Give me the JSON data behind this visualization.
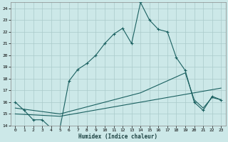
{
  "xlabel": "Humidex (Indice chaleur)",
  "bg_color": "#cce8e8",
  "grid_color": "#aacaca",
  "line_color": "#1a6060",
  "line1": {
    "x": [
      0,
      1,
      2,
      3,
      4,
      5,
      6,
      7,
      8,
      9,
      10,
      11,
      12,
      13,
      14,
      15,
      16,
      17,
      18,
      19,
      20,
      21,
      22,
      23
    ],
    "y": [
      16.0,
      15.3,
      14.5,
      14.5,
      13.8,
      13.8,
      17.8,
      18.8,
      19.3,
      20.0,
      21.0,
      21.8,
      22.3,
      21.0,
      24.5,
      23.0,
      22.2,
      22.0,
      19.8,
      18.7,
      16.0,
      15.3,
      16.5,
      16.2
    ]
  },
  "line2": {
    "x": [
      0,
      5,
      23
    ],
    "y": [
      15.0,
      14.8,
      17.2
    ]
  },
  "line3": {
    "x": [
      0,
      5,
      14,
      19,
      20,
      21,
      22,
      23
    ],
    "y": [
      15.5,
      15.0,
      16.8,
      18.5,
      16.2,
      15.5,
      16.4,
      16.2
    ]
  },
  "xlim": [
    -0.5,
    23.5
  ],
  "ylim": [
    14,
    24.5
  ],
  "xticks": [
    0,
    1,
    2,
    3,
    4,
    5,
    6,
    7,
    8,
    9,
    10,
    11,
    12,
    13,
    14,
    15,
    16,
    17,
    18,
    19,
    20,
    21,
    22,
    23
  ],
  "yticks": [
    14,
    15,
    16,
    17,
    18,
    19,
    20,
    21,
    22,
    23,
    24
  ]
}
